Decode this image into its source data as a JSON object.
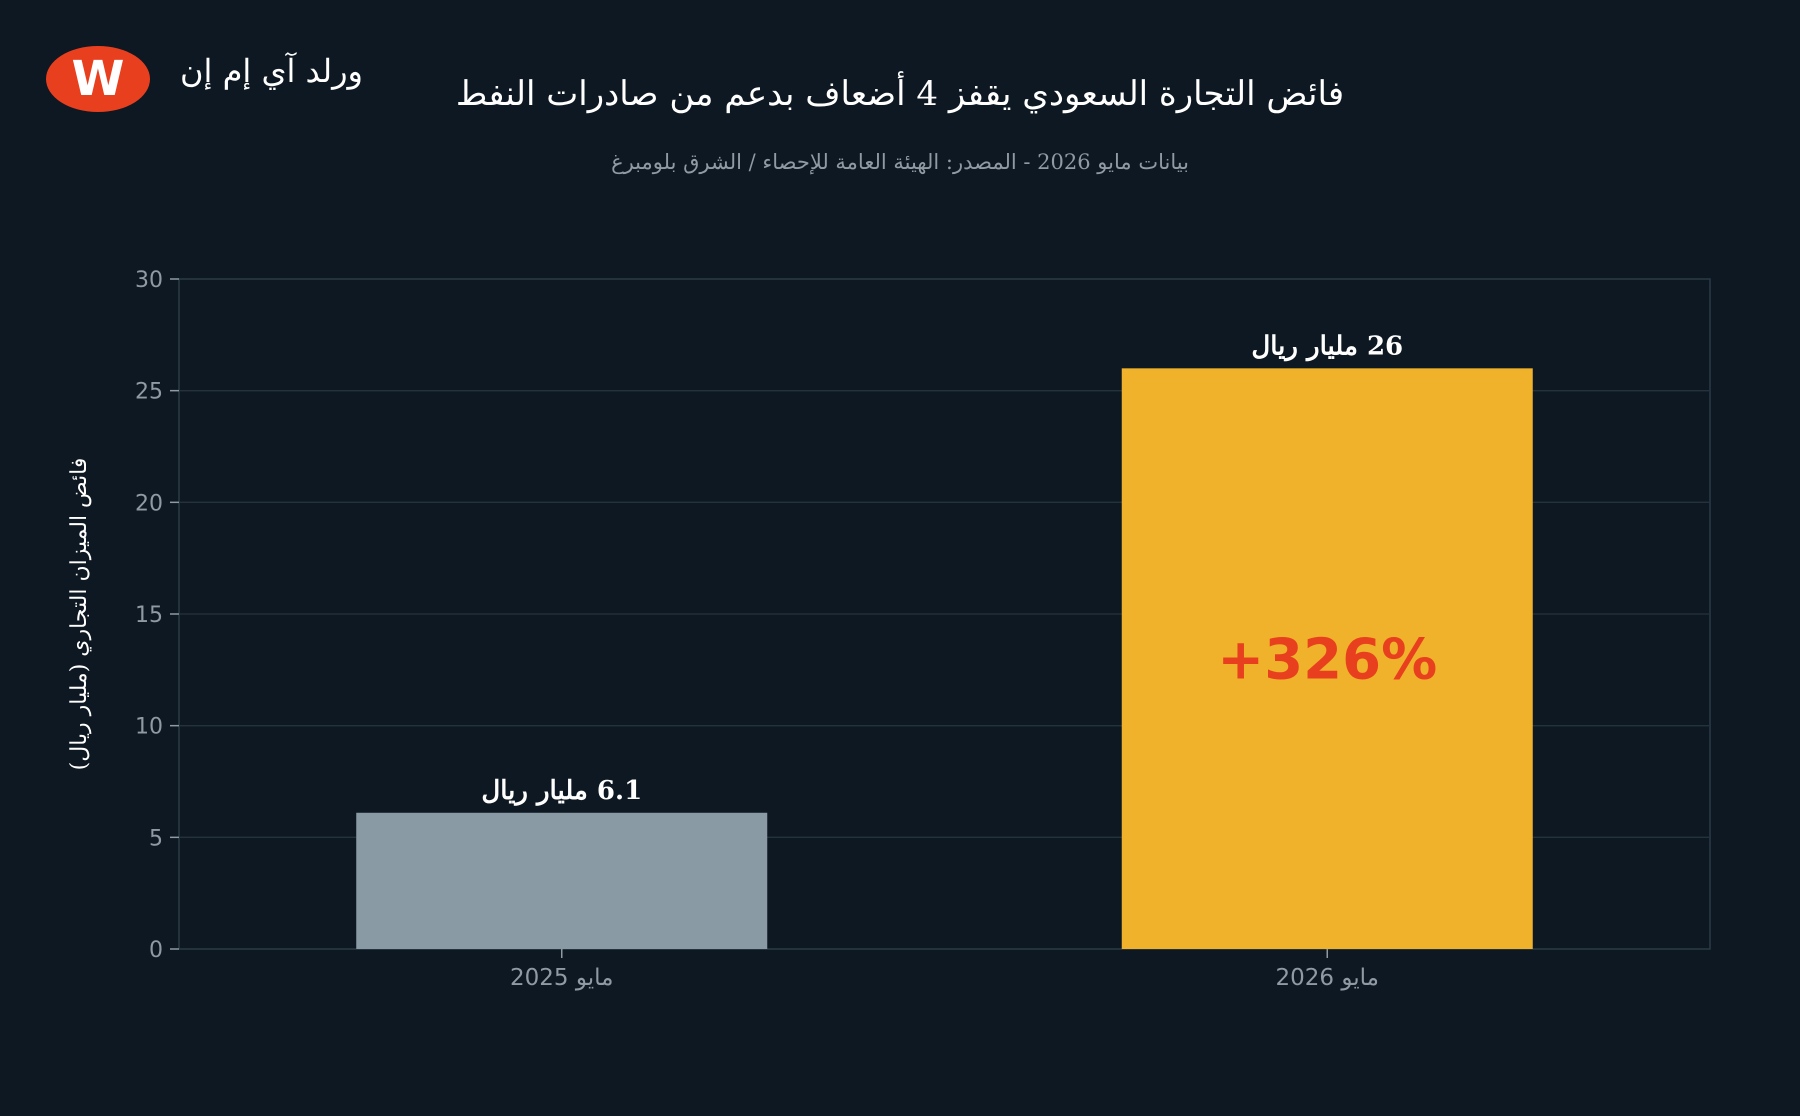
{
  "brand": {
    "logo_letter": "W",
    "name": "ورلد آي إم إن",
    "logo_color": "#e8401f"
  },
  "chart_data": {
    "type": "bar",
    "title": "فائض التجارة السعودي يقفز 4 أضعاف بدعم من صادرات النفط",
    "subtitle": "بيانات مايو 2026 - المصدر: الهيئة العامة للإحصاء / الشرق بلومبرغ",
    "xlabel": "",
    "ylabel": "فائض الميزان التجاري (مليار ريال)",
    "categories": [
      "مايو 2025",
      "مايو 2026"
    ],
    "values": [
      6.1,
      26
    ],
    "data_labels": [
      "6.1 مليار ريال",
      "26 مليار ريال"
    ],
    "bar_colors": [
      "#8a9aa4",
      "#f0b22b"
    ],
    "ylim": [
      0,
      30
    ],
    "yticks": [
      0,
      5,
      10,
      15,
      20,
      25,
      30
    ],
    "grid": true,
    "annotation": {
      "text": "+326%",
      "bar_index": 1,
      "color": "#e8401f"
    }
  }
}
